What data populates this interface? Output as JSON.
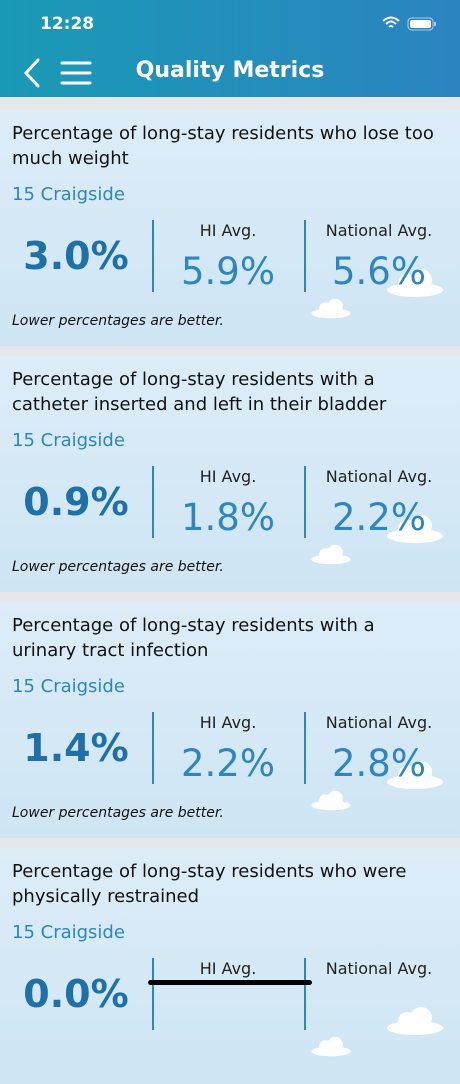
{
  "status_bar": {
    "time": "12:28"
  },
  "header": {
    "title": "Quality Metrics"
  },
  "cards": [
    {
      "title": "Percentage of long-stay residents who lose too much weight",
      "facility": "15 Craigside",
      "value": "3.0%",
      "hi_label": "HI Avg.",
      "hi_value": "5.9%",
      "national_label": "National Avg.",
      "national_value": "5.6%",
      "note": "Lower percentages are better."
    },
    {
      "title": "Percentage of long-stay residents with a catheter inserted and left in their bladder",
      "facility": "15 Craigside",
      "value": "0.9%",
      "hi_label": "HI Avg.",
      "hi_value": "1.8%",
      "national_label": "National Avg.",
      "national_value": "2.2%",
      "note": "Lower percentages are better."
    },
    {
      "title": "Percentage of long-stay residents with a urinary tract infection",
      "facility": "15 Craigside",
      "value": "1.4%",
      "hi_label": "HI Avg.",
      "hi_value": "2.2%",
      "national_label": "National Avg.",
      "national_value": "2.8%",
      "note": "Lower percentages are better."
    },
    {
      "title": "Percentage of long-stay residents who were physically restrained",
      "facility": "15 Craigside",
      "value": "0.0%",
      "hi_label": "HI Avg.",
      "national_label": "National Avg."
    }
  ]
}
